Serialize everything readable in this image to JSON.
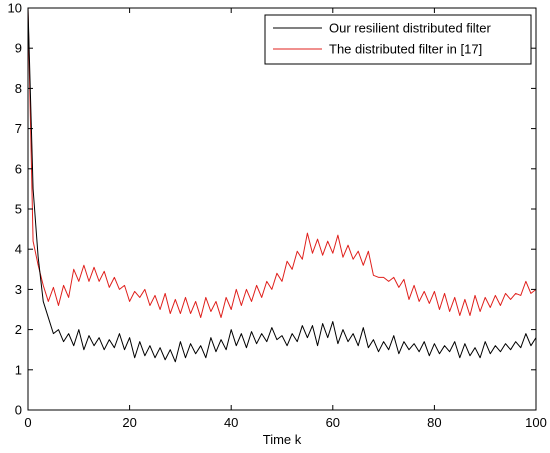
{
  "chart_data": {
    "type": "line",
    "title": "",
    "xlabel": "Time k",
    "ylabel": "",
    "xlim": [
      0,
      100
    ],
    "ylim": [
      0,
      10
    ],
    "xticks": [
      0,
      20,
      40,
      60,
      80,
      100
    ],
    "yticks": [
      0,
      1,
      2,
      3,
      4,
      5,
      6,
      7,
      8,
      9,
      10
    ],
    "grid": false,
    "legend_position": "top-right",
    "series": [
      {
        "name": "Our resilient distributed filter",
        "color": "#000000",
        "x": [
          0,
          1,
          2,
          3,
          4,
          5,
          6,
          7,
          8,
          9,
          10,
          11,
          12,
          13,
          14,
          15,
          16,
          17,
          18,
          19,
          20,
          21,
          22,
          23,
          24,
          25,
          26,
          27,
          28,
          29,
          30,
          31,
          32,
          33,
          34,
          35,
          36,
          37,
          38,
          39,
          40,
          41,
          42,
          43,
          44,
          45,
          46,
          47,
          48,
          49,
          50,
          51,
          52,
          53,
          54,
          55,
          56,
          57,
          58,
          59,
          60,
          61,
          62,
          63,
          64,
          65,
          66,
          67,
          68,
          69,
          70,
          71,
          72,
          73,
          74,
          75,
          76,
          77,
          78,
          79,
          80,
          81,
          82,
          83,
          84,
          85,
          86,
          87,
          88,
          89,
          90,
          91,
          92,
          93,
          94,
          95,
          96,
          97,
          98,
          99,
          100
        ],
        "y": [
          10,
          5.5,
          3.8,
          2.7,
          2.3,
          1.9,
          2.0,
          1.7,
          1.9,
          1.6,
          2.0,
          1.5,
          1.85,
          1.6,
          1.8,
          1.5,
          1.75,
          1.55,
          1.9,
          1.5,
          1.8,
          1.3,
          1.7,
          1.35,
          1.6,
          1.3,
          1.55,
          1.25,
          1.5,
          1.2,
          1.7,
          1.3,
          1.65,
          1.4,
          1.6,
          1.3,
          1.8,
          1.45,
          1.75,
          1.5,
          2.0,
          1.6,
          1.9,
          1.55,
          1.95,
          1.65,
          1.9,
          1.7,
          2.05,
          1.75,
          1.85,
          1.6,
          1.9,
          1.7,
          2.1,
          1.8,
          2.1,
          1.6,
          2.15,
          1.8,
          2.2,
          1.65,
          2.0,
          1.7,
          1.9,
          1.6,
          2.05,
          1.55,
          1.75,
          1.45,
          1.7,
          1.5,
          1.85,
          1.4,
          1.7,
          1.5,
          1.65,
          1.45,
          1.7,
          1.35,
          1.65,
          1.4,
          1.6,
          1.45,
          1.7,
          1.3,
          1.65,
          1.35,
          1.55,
          1.3,
          1.7,
          1.4,
          1.6,
          1.45,
          1.65,
          1.5,
          1.7,
          1.55,
          1.9,
          1.6,
          1.8
        ]
      },
      {
        "name": "The distributed filter in [17]",
        "color": "#e0201c",
        "x": [
          0,
          1,
          2,
          3,
          4,
          5,
          6,
          7,
          8,
          9,
          10,
          11,
          12,
          13,
          14,
          15,
          16,
          17,
          18,
          19,
          20,
          21,
          22,
          23,
          24,
          25,
          26,
          27,
          28,
          29,
          30,
          31,
          32,
          33,
          34,
          35,
          36,
          37,
          38,
          39,
          40,
          41,
          42,
          43,
          44,
          45,
          46,
          47,
          48,
          49,
          50,
          51,
          52,
          53,
          54,
          55,
          56,
          57,
          58,
          59,
          60,
          61,
          62,
          63,
          64,
          65,
          66,
          67,
          68,
          69,
          70,
          71,
          72,
          73,
          74,
          75,
          76,
          77,
          78,
          79,
          80,
          81,
          82,
          83,
          84,
          85,
          86,
          87,
          88,
          89,
          90,
          91,
          92,
          93,
          94,
          95,
          96,
          97,
          98,
          99,
          100
        ],
        "y": [
          10,
          4.2,
          3.6,
          3.1,
          2.7,
          3.05,
          2.6,
          3.1,
          2.8,
          3.5,
          3.2,
          3.6,
          3.2,
          3.55,
          3.2,
          3.45,
          3.05,
          3.3,
          3.0,
          3.1,
          2.7,
          2.95,
          2.8,
          3.0,
          2.6,
          2.85,
          2.5,
          2.9,
          2.4,
          2.75,
          2.4,
          2.8,
          2.4,
          2.7,
          2.3,
          2.8,
          2.45,
          2.7,
          2.3,
          2.8,
          2.5,
          3.0,
          2.6,
          3.0,
          2.7,
          3.1,
          2.8,
          3.2,
          3.0,
          3.4,
          3.2,
          3.7,
          3.5,
          3.95,
          3.75,
          4.4,
          3.9,
          4.25,
          3.85,
          4.2,
          3.9,
          4.35,
          3.8,
          4.1,
          3.75,
          3.95,
          3.6,
          3.95,
          3.35,
          3.3,
          3.3,
          3.2,
          3.3,
          3.05,
          3.25,
          2.75,
          3.1,
          2.7,
          2.95,
          2.65,
          2.95,
          2.5,
          2.9,
          2.45,
          2.8,
          2.35,
          2.75,
          2.35,
          2.85,
          2.45,
          2.8,
          2.55,
          2.85,
          2.6,
          2.9,
          2.75,
          2.9,
          2.85,
          3.2,
          2.9,
          3.0
        ]
      }
    ]
  }
}
